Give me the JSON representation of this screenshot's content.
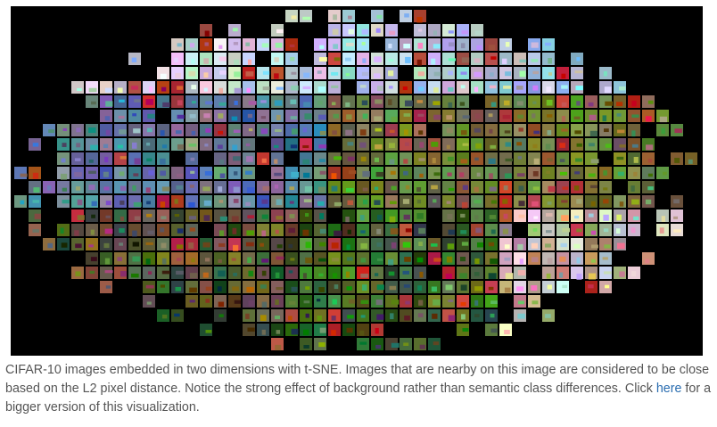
{
  "figure": {
    "alt": "CIFAR-10 images embedded in two dimensions with t-SNE",
    "palette": {
      "background": "#000000",
      "sky_blue": "#7fa6cf",
      "sea_blue": "#3f6c9a",
      "vehicle_gray": "#8a8d93",
      "vehicle_red": "#b23a32",
      "animal_brown": "#8c6a45",
      "grass_green": "#5f8a3a",
      "dark_green": "#2f4d2a",
      "white_bg": "#e8e8e8"
    }
  },
  "caption": {
    "text_before_link": "CIFAR-10 images embedded in two dimensions with t-SNE. Images that are nearby on this image are considered to be close based on the L2 pixel distance. Notice the strong effect of background rather than semantic class differences. Click ",
    "link_text": "here",
    "text_after_link": " for a bigger version of this visualization."
  }
}
